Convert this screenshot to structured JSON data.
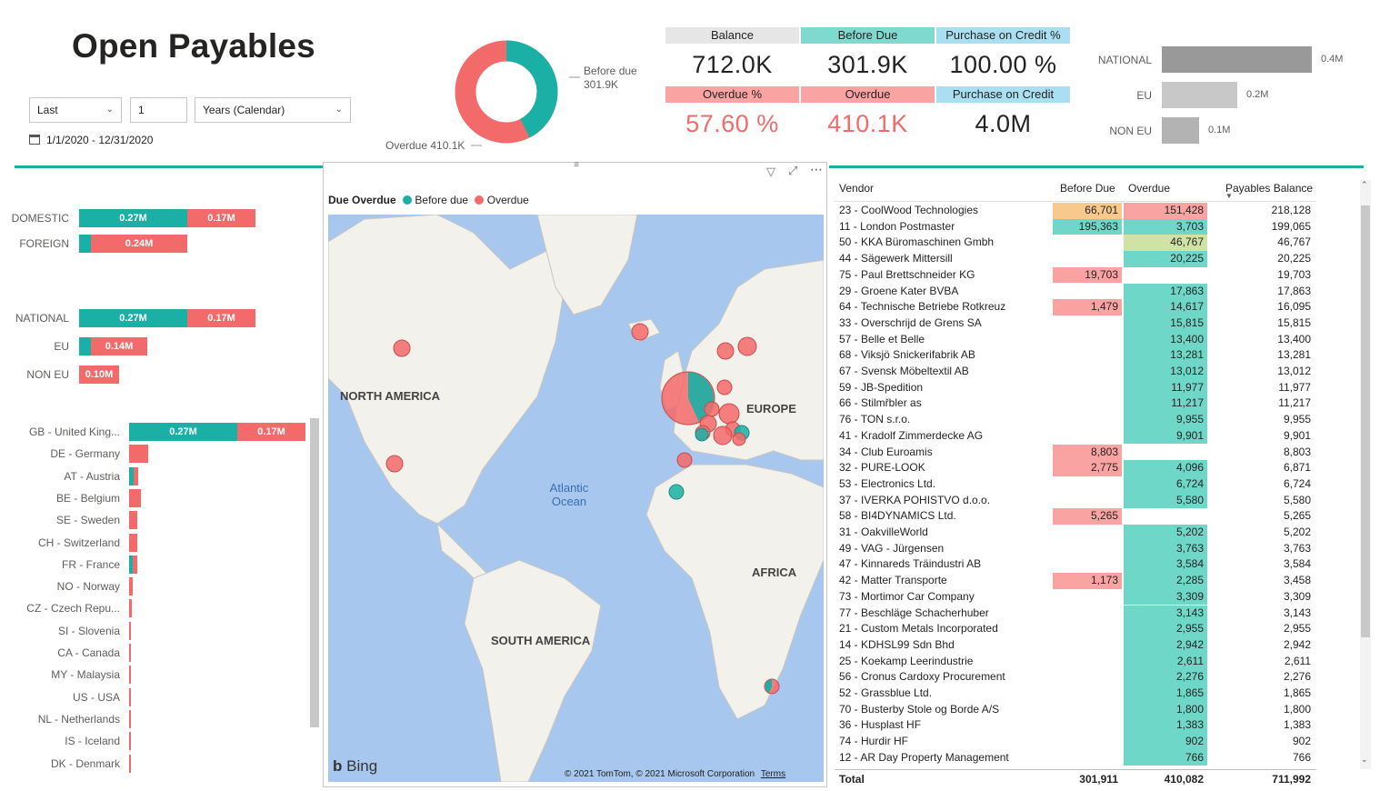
{
  "title": "Open Payables",
  "filters": {
    "period": "Last",
    "count": "1",
    "unit": "Years (Calendar)",
    "date_range": "1/1/2020 - 12/31/2020"
  },
  "donut": {
    "before_due_label": "Before due",
    "before_due_value": "301.9K",
    "overdue_label": "Overdue 410.1K",
    "before_due_fraction": 0.424,
    "colors": {
      "before_due": "#1ab0a6",
      "overdue": "#f36a6a"
    }
  },
  "kpis": {
    "balance_label": "Balance",
    "balance": "712.0K",
    "before_due_label": "Before Due",
    "before_due": "301.9K",
    "credit_pct_label": "Purchase on Credit %",
    "credit_pct": "100.00 %",
    "overdue_pct_label": "Overdue %",
    "overdue_pct": "57.60 %",
    "overdue_label": "Overdue",
    "overdue": "410.1K",
    "credit_label": "Purchase on Credit",
    "credit": "4.0M"
  },
  "region_chart": {
    "rows": [
      {
        "label": "NATIONAL",
        "value_label": "0.4M",
        "value": 0.4
      },
      {
        "label": "EU",
        "value_label": "0.2M",
        "value": 0.2
      },
      {
        "label": "NON EU",
        "value_label": "0.1M",
        "value": 0.1
      }
    ]
  },
  "domestic_chart": {
    "rows": [
      {
        "label": "DOMESTIC",
        "before": 0.27,
        "overdue": 0.17,
        "before_label": "0.27M",
        "overdue_label": "0.17M"
      },
      {
        "label": "FOREIGN",
        "before": 0.03,
        "overdue": 0.24,
        "before_label": "",
        "overdue_label": "0.24M"
      }
    ]
  },
  "region_stacked_chart": {
    "rows": [
      {
        "label": "NATIONAL",
        "before": 0.27,
        "overdue": 0.17,
        "before_label": "0.27M",
        "overdue_label": "0.17M"
      },
      {
        "label": "EU",
        "before": 0.03,
        "overdue": 0.14,
        "before_label": "",
        "overdue_label": "0.14M"
      },
      {
        "label": "NON EU",
        "before": 0.0,
        "overdue": 0.1,
        "before_label": "",
        "overdue_label": "0.10M"
      }
    ]
  },
  "country_chart": {
    "rows": [
      {
        "label": "GB - United King...",
        "before": 0.27,
        "overdue": 0.17,
        "before_label": "0.27M",
        "overdue_label": "0.17M"
      },
      {
        "label": "DE - Germany",
        "before": 0.0,
        "overdue": 0.047
      },
      {
        "label": "AT - Austria",
        "before": 0.012,
        "overdue": 0.012
      },
      {
        "label": "BE - Belgium",
        "before": 0.0,
        "overdue": 0.029
      },
      {
        "label": "SE - Sweden",
        "before": 0.0,
        "overdue": 0.021
      },
      {
        "label": "CH - Switzerland",
        "before": 0.0,
        "overdue": 0.02
      },
      {
        "label": "FR - France",
        "before": 0.008,
        "overdue": 0.012
      },
      {
        "label": "NO - Norway",
        "before": 0.0,
        "overdue": 0.008
      },
      {
        "label": "CZ - Czech Repu...",
        "before": 0.0,
        "overdue": 0.007
      },
      {
        "label": "SI - Slovenia",
        "before": 0.0,
        "overdue": 0.005
      },
      {
        "label": "CA - Canada",
        "before": 0.0,
        "overdue": 0.005
      },
      {
        "label": "MY - Malaysia",
        "before": 0.0,
        "overdue": 0.003
      },
      {
        "label": "US - USA",
        "before": 0.0,
        "overdue": 0.003
      },
      {
        "label": "NL - Netherlands",
        "before": 0.0,
        "overdue": 0.002
      },
      {
        "label": "IS - Iceland",
        "before": 0.0,
        "overdue": 0.002
      },
      {
        "label": "DK - Denmark",
        "before": 0.0,
        "overdue": 0.002
      }
    ]
  },
  "map": {
    "legend_title": "Due Overdue",
    "legend_before": "Before due",
    "legend_overdue": "Overdue",
    "labels": {
      "north_america": "NORTH AMERICA",
      "europe": "EUROPE",
      "africa": "AFRICA",
      "south_america": "SOUTH AMERICA",
      "ocean": "Atlantic Ocean"
    },
    "bing": "Bing",
    "copyright": "© 2021 TomTom, © 2021 Microsoft Corporation",
    "terms": "Terms"
  },
  "table": {
    "headers": {
      "vendor": "Vendor",
      "before_due": "Before Due",
      "overdue": "Overdue",
      "balance": "Payables Balance"
    },
    "rows": [
      {
        "vendor": "23 - CoolWood Technologies",
        "before_due": "66,701",
        "overdue": "151,428",
        "balance": "218,128"
      },
      {
        "vendor": "11 - London Postmaster",
        "before_due": "195,363",
        "overdue": "3,703",
        "balance": "199,065"
      },
      {
        "vendor": "50 - KKA Büromaschinen Gmbh",
        "before_due": "",
        "overdue": "46,767",
        "balance": "46,767"
      },
      {
        "vendor": "44 - Sägewerk Mittersill",
        "before_due": "",
        "overdue": "20,225",
        "balance": "20,225"
      },
      {
        "vendor": "75 - Paul Brettschneider KG",
        "before_due": "19,703",
        "overdue": "",
        "balance": "19,703"
      },
      {
        "vendor": "29 - Groene Kater BVBA",
        "before_due": "",
        "overdue": "17,863",
        "balance": "17,863"
      },
      {
        "vendor": "64 - Technische Betriebe Rotkreuz",
        "before_due": "1,479",
        "overdue": "14,617",
        "balance": "16,095"
      },
      {
        "vendor": "33 - Overschrijd de Grens SA",
        "before_due": "",
        "overdue": "15,815",
        "balance": "15,815"
      },
      {
        "vendor": "57 - Belle et Belle",
        "before_due": "",
        "overdue": "13,400",
        "balance": "13,400"
      },
      {
        "vendor": "68 - Viksjö Snickerifabrik AB",
        "before_due": "",
        "overdue": "13,281",
        "balance": "13,281"
      },
      {
        "vendor": "67 - Svensk Möbeltextil AB",
        "before_due": "",
        "overdue": "13,012",
        "balance": "13,012"
      },
      {
        "vendor": "59 - JB-Spedition",
        "before_due": "",
        "overdue": "11,977",
        "balance": "11,977"
      },
      {
        "vendor": "66 - Stilmřbler as",
        "before_due": "",
        "overdue": "11,217",
        "balance": "11,217"
      },
      {
        "vendor": "76 - TON s.r.o.",
        "before_due": "",
        "overdue": "9,955",
        "balance": "9,955"
      },
      {
        "vendor": "41 - Kradolf Zimmerdecke AG",
        "before_due": "",
        "overdue": "9,901",
        "balance": "9,901"
      },
      {
        "vendor": "34 - Club Euroamis",
        "before_due": "8,803",
        "overdue": "",
        "balance": "8,803"
      },
      {
        "vendor": "32 - PURE-LOOK",
        "before_due": "2,775",
        "overdue": "4,096",
        "balance": "6,871"
      },
      {
        "vendor": "53 - Electronics Ltd.",
        "before_due": "",
        "overdue": "6,724",
        "balance": "6,724"
      },
      {
        "vendor": "37 - IVERKA POHISTVO d.o.o.",
        "before_due": "",
        "overdue": "5,580",
        "balance": "5,580"
      },
      {
        "vendor": "58 - BI4DYNAMICS Ltd.",
        "before_due": "5,265",
        "overdue": "",
        "balance": "5,265"
      },
      {
        "vendor": "31 - OakvilleWorld",
        "before_due": "",
        "overdue": "5,202",
        "balance": "5,202"
      },
      {
        "vendor": "49 - VAG - Jürgensen",
        "before_due": "",
        "overdue": "3,763",
        "balance": "3,763"
      },
      {
        "vendor": "47 - Kinnareds Träindustri AB",
        "before_due": "",
        "overdue": "3,584",
        "balance": "3,584"
      },
      {
        "vendor": "42 - Matter Transporte",
        "before_due": "1,173",
        "overdue": "2,285",
        "balance": "3,458"
      },
      {
        "vendor": "73 - Mortimor Car Company",
        "before_due": "",
        "overdue": "3,309",
        "balance": "3,309"
      },
      {
        "vendor": "77 - Beschläge Schacherhuber",
        "before_due": "",
        "overdue": "3,143",
        "balance": "3,143"
      },
      {
        "vendor": "21 - Custom Metals Incorporated",
        "before_due": "",
        "overdue": "2,955",
        "balance": "2,955"
      },
      {
        "vendor": "14 - KDHSL99 Sdn Bhd",
        "before_due": "",
        "overdue": "2,942",
        "balance": "2,942"
      },
      {
        "vendor": "25 - Koekamp Leerindustrie",
        "before_due": "",
        "overdue": "2,611",
        "balance": "2,611"
      },
      {
        "vendor": "56 - Cronus Cardoxy Procurement",
        "before_due": "",
        "overdue": "2,276",
        "balance": "2,276"
      },
      {
        "vendor": "52 - Grassblue Ltd.",
        "before_due": "",
        "overdue": "1,865",
        "balance": "1,865"
      },
      {
        "vendor": "70 - Busterby Stole og Borde A/S",
        "before_due": "",
        "overdue": "1,800",
        "balance": "1,800"
      },
      {
        "vendor": "36 - Husplast HF",
        "before_due": "",
        "overdue": "1,383",
        "balance": "1,383"
      },
      {
        "vendor": "74 - Hurdir HF",
        "before_due": "",
        "overdue": "902",
        "balance": "902"
      },
      {
        "vendor": "12 - AR Day Property Management",
        "before_due": "",
        "overdue": "766",
        "balance": "766"
      }
    ],
    "total": {
      "label": "Total",
      "before_due": "301,911",
      "overdue": "410,082",
      "balance": "711,992"
    }
  },
  "colors": {
    "teal": "#1ab0a6",
    "red": "#f36a6a",
    "teal_cell": "#6fd7c8",
    "red_cell": "#f9a3a3",
    "orange_cell": "#f7c98c",
    "olive_cell": "#cfe3a5"
  }
}
